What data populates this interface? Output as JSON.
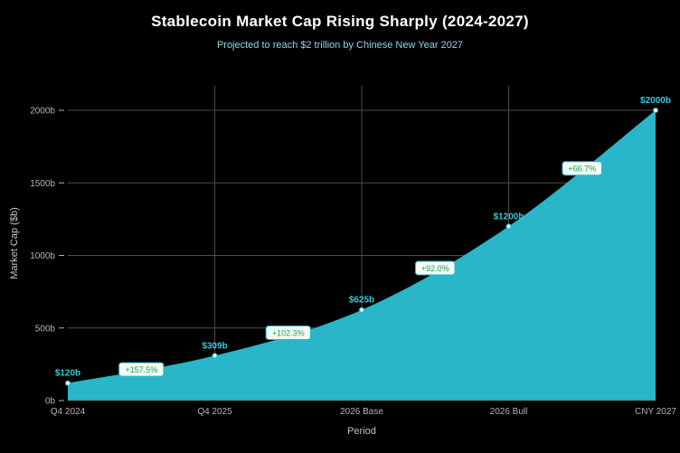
{
  "header": {
    "title": "Stablecoin Market Cap Rising Sharply (2024-2027)",
    "subtitle": "Projected to reach $2 trillion by Chinese New Year 2027"
  },
  "axes": {
    "x_title": "Period",
    "y_title": "Market Cap ($b)"
  },
  "chart_data": {
    "type": "area",
    "title": "Stablecoin Market Cap Rising Sharply (2024-2027)",
    "subtitle": "Projected to reach $2 trillion by Chinese New Year 2027",
    "xlabel": "Period",
    "ylabel": "Market Cap ($b)",
    "categories": [
      "Q4 2024",
      "Q4 2025",
      "2026 Base",
      "2026 Bull",
      "CNY 2027"
    ],
    "values": [
      120,
      309,
      625,
      1200,
      2000
    ],
    "point_labels": [
      "$120b",
      "$309b",
      "$625b",
      "$1200b",
      "$2000b"
    ],
    "pct_change_labels": [
      "+157.5%",
      "+102.3%",
      "+92.0%",
      "+66.7%"
    ],
    "ylim": [
      0,
      2000
    ],
    "y_ticks": [
      0,
      500,
      1000,
      1500,
      2000
    ],
    "y_tick_labels": [
      "0b",
      "500b",
      "1000b",
      "1500b",
      "2000b"
    ],
    "grid": true,
    "legend": "none",
    "colors": {
      "background": "#000000",
      "area_fill": "#29b6c8",
      "value_label": "#2fcbda",
      "pct_text": "#1f9e55",
      "pct_bg": "#f4fbf6",
      "pct_border": "#29b6c8",
      "grid_line": "#4d4d4d",
      "axis_line": "#555555",
      "tick_text": "#b3b3b3",
      "title_text": "#ffffff",
      "subtitle_text": "#8ed9e2"
    }
  }
}
